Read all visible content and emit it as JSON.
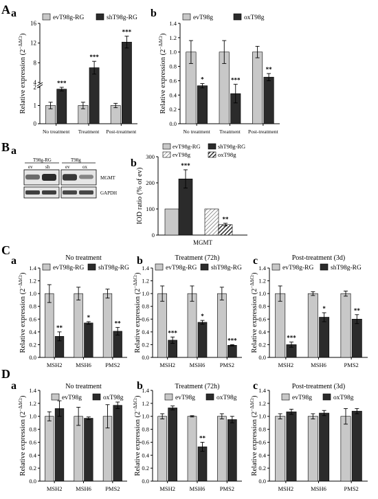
{
  "colors": {
    "light": "#c8c8c8",
    "dark": "#2b2b2b",
    "axis": "#000000",
    "blot_bg": "#e6e6e6",
    "band": "#2a2a2a"
  },
  "panel_letters": {
    "A": "A",
    "Aa": "a",
    "Ab": "b",
    "B": "B",
    "Ba": "a",
    "Bb": "b",
    "C": "C",
    "Ca": "a",
    "Cb": "b",
    "Cc": "c",
    "D": "D",
    "Da": "a",
    "Db": "b",
    "Dc": "c"
  },
  "blot": {
    "group1_title": "T98g-RG",
    "group1_lanes": [
      "ev",
      "sh"
    ],
    "group2_title": "T98g",
    "group2_lanes": [
      "ev",
      "ox"
    ],
    "band1_label": "MGMT",
    "band2_label": "GAPDH",
    "mgmt_intensity": [
      0.55,
      1.0,
      0.9,
      0.35
    ],
    "gapdh_intensity": [
      0.85,
      0.85,
      0.8,
      0.8
    ]
  },
  "chart_data": [
    {
      "id": "Aa",
      "type": "bar",
      "ylabel": "Relative expression (2⁻ΔΔCt)",
      "ylabel_main": "Relative expression (2",
      "ylabel_sup": "−ΔΔCt",
      "ylabel_end": ")",
      "broken_axis": true,
      "lower_ylim": [
        0,
        2
      ],
      "lower_ticks": [
        "0",
        "1",
        "2"
      ],
      "upper_ylim": [
        4,
        16
      ],
      "upper_ticks": [
        "4",
        "8",
        "12",
        "16"
      ],
      "categories": [
        "No treatment",
        "Treatment",
        "Post-treatment"
      ],
      "series": [
        {
          "name": "evT98g-RG",
          "color": "light",
          "values": [
            1.0,
            1.0,
            1.0
          ],
          "errors": [
            0.18,
            0.18,
            0.12
          ]
        },
        {
          "name": "shT98g-RG",
          "color": "dark",
          "values": [
            1.9,
            7.0,
            12.2
          ],
          "errors": [
            0.1,
            1.3,
            1.2
          ]
        }
      ],
      "significance": [
        "***",
        "***",
        "***"
      ]
    },
    {
      "id": "Ab",
      "type": "bar",
      "ylabel_main": "Relative expression (2",
      "ylabel_sup": "−ΔΔCt",
      "ylabel_end": ")",
      "ylim": [
        0,
        1.4
      ],
      "yticks": [
        "0.0",
        "0.2",
        "0.4",
        "0.6",
        "0.8",
        "1.0",
        "1.2",
        "1.4"
      ],
      "categories": [
        "No treatment",
        "Treatment",
        "Post-treatment"
      ],
      "series": [
        {
          "name": "evT98g",
          "color": "light",
          "values": [
            1.0,
            1.0,
            1.0
          ],
          "errors": [
            0.16,
            0.16,
            0.08
          ]
        },
        {
          "name": "oxT98g",
          "color": "dark",
          "values": [
            0.53,
            0.42,
            0.65
          ],
          "errors": [
            0.03,
            0.13,
            0.05
          ]
        }
      ],
      "significance": [
        "*",
        "***",
        "**"
      ]
    },
    {
      "id": "Bb",
      "type": "bar",
      "ylabel_main": "IOD ratio (% of ev)",
      "xlabel": "MGMT",
      "ylim": [
        0,
        300
      ],
      "yticks": [
        "0",
        "100",
        "200",
        "300"
      ],
      "legend": [
        "evT98g-RG",
        "shT98g-RG",
        "evT98g",
        "oxT98g"
      ],
      "bars": [
        {
          "series": "evT98g-RG",
          "value": 100,
          "error": 0
        },
        {
          "series": "shT98g-RG",
          "value": 215,
          "error": 35,
          "sig": "***"
        },
        {
          "series": "evT98g",
          "value": 100,
          "error": 0
        },
        {
          "series": "oxT98g",
          "value": 40,
          "error": 5,
          "sig": "**"
        }
      ]
    },
    {
      "id": "Ca",
      "type": "bar",
      "title": "No treatment",
      "ylabel_main": "Relative expression (2",
      "ylabel_sup": "−ΔΔCt",
      "ylabel_end": ")",
      "ylim": [
        0,
        1.4
      ],
      "yticks": [
        "0.0",
        "0.2",
        "0.4",
        "0.6",
        "0.8",
        "1.0",
        "1.2",
        "1.4"
      ],
      "categories": [
        "MSH2",
        "MSH6",
        "PMS2"
      ],
      "series": [
        {
          "name": "evT98g-RG",
          "color": "light",
          "values": [
            1.0,
            1.0,
            1.0
          ],
          "errors": [
            0.14,
            0.1,
            0.07
          ]
        },
        {
          "name": "shT98g-RG",
          "color": "dark",
          "values": [
            0.33,
            0.54,
            0.41
          ],
          "errors": [
            0.07,
            0.02,
            0.06
          ]
        }
      ],
      "significance": [
        "**",
        "*",
        "**"
      ]
    },
    {
      "id": "Cb",
      "type": "bar",
      "title": "Treatment (72h)",
      "ylabel_main": "Relative expression (2",
      "ylabel_sup": "−ΔΔCt",
      "ylabel_end": ")",
      "ylim": [
        0,
        1.4
      ],
      "yticks": [
        "0.0",
        "0.2",
        "0.4",
        "0.6",
        "0.8",
        "1.0",
        "1.2",
        "1.4"
      ],
      "categories": [
        "MSH2",
        "MSH6",
        "PMS2"
      ],
      "series": [
        {
          "name": "evT98g-RG",
          "color": "light",
          "values": [
            1.0,
            1.0,
            1.0
          ],
          "errors": [
            0.12,
            0.12,
            0.1
          ]
        },
        {
          "name": "shT98g-RG",
          "color": "dark",
          "values": [
            0.27,
            0.55,
            0.19
          ],
          "errors": [
            0.05,
            0.03,
            0.01
          ]
        }
      ],
      "significance": [
        "***",
        "*",
        "***"
      ]
    },
    {
      "id": "Cc",
      "type": "bar",
      "title": "Post-treatment (3d)",
      "ylabel_main": "Relative expression (2",
      "ylabel_sup": "−ΔΔCt",
      "ylabel_end": ")",
      "ylim": [
        0,
        1.4
      ],
      "yticks": [
        "0.0",
        "0.2",
        "0.4",
        "0.6",
        "0.8",
        "1.0",
        "1.2",
        "1.4"
      ],
      "categories": [
        "MSH2",
        "MSH6",
        "PMS2"
      ],
      "series": [
        {
          "name": "evT98g-RG",
          "color": "light",
          "values": [
            1.0,
            1.0,
            1.0
          ],
          "errors": [
            0.12,
            0.03,
            0.04
          ]
        },
        {
          "name": "shT98g-RG",
          "color": "dark",
          "values": [
            0.2,
            0.63,
            0.6
          ],
          "errors": [
            0.04,
            0.07,
            0.07
          ]
        }
      ],
      "significance": [
        "***",
        "*",
        "**"
      ]
    },
    {
      "id": "Da",
      "type": "bar",
      "title": "No treatment",
      "ylabel_main": "Relative expression (2",
      "ylabel_sup": "−ΔΔCt",
      "ylabel_end": ")",
      "ylim": [
        0,
        1.4
      ],
      "yticks": [
        "0.0",
        "0.2",
        "0.4",
        "0.6",
        "0.8",
        "1.0",
        "1.2",
        "1.4"
      ],
      "categories": [
        "MSH2",
        "MSH6",
        "PMS2"
      ],
      "series": [
        {
          "name": "evT98g",
          "color": "light",
          "values": [
            1.0,
            1.0,
            1.0
          ],
          "errors": [
            0.07,
            0.14,
            0.18
          ]
        },
        {
          "name": "oxT98g",
          "color": "dark",
          "values": [
            1.12,
            0.97,
            1.17
          ],
          "errors": [
            0.12,
            0.02,
            0.05
          ]
        }
      ],
      "significance": [
        "",
        "",
        ""
      ]
    },
    {
      "id": "Db",
      "type": "bar",
      "title": "Treatment (72h)",
      "ylabel_main": "Relative expression (2",
      "ylabel_sup": "−ΔΔCt",
      "ylabel_end": ")",
      "ylim": [
        0,
        1.4
      ],
      "yticks": [
        "0.0",
        "0.2",
        "0.4",
        "0.6",
        "0.8",
        "1.0",
        "1.2",
        "1.4"
      ],
      "categories": [
        "MSH2",
        "MSH6",
        "PMS2"
      ],
      "series": [
        {
          "name": "evT98g",
          "color": "light",
          "values": [
            1.0,
            1.0,
            1.0
          ],
          "errors": [
            0.04,
            0.01,
            0.04
          ]
        },
        {
          "name": "oxT98g",
          "color": "dark",
          "values": [
            1.13,
            0.53,
            0.95
          ],
          "errors": [
            0.03,
            0.07,
            0.05
          ]
        }
      ],
      "significance": [
        "",
        "**",
        ""
      ]
    },
    {
      "id": "Dc",
      "type": "bar",
      "title": "Post-treatment (3d)",
      "ylabel_main": "Relative expression (2",
      "ylabel_sup": "−ΔΔCt",
      "ylabel_end": ")",
      "ylim": [
        0,
        1.4
      ],
      "yticks": [
        "0.0",
        "0.2",
        "0.4",
        "0.6",
        "0.8",
        "1.0",
        "1.2",
        "1.4"
      ],
      "categories": [
        "MSH2",
        "MSH6",
        "PMS2"
      ],
      "series": [
        {
          "name": "evT98g",
          "color": "light",
          "values": [
            1.0,
            1.0,
            1.0
          ],
          "errors": [
            0.04,
            0.04,
            0.12
          ]
        },
        {
          "name": "oxT98g",
          "color": "dark",
          "values": [
            1.07,
            1.05,
            1.08
          ],
          "errors": [
            0.04,
            0.04,
            0.04
          ]
        }
      ],
      "significance": [
        "",
        "",
        ""
      ]
    }
  ]
}
